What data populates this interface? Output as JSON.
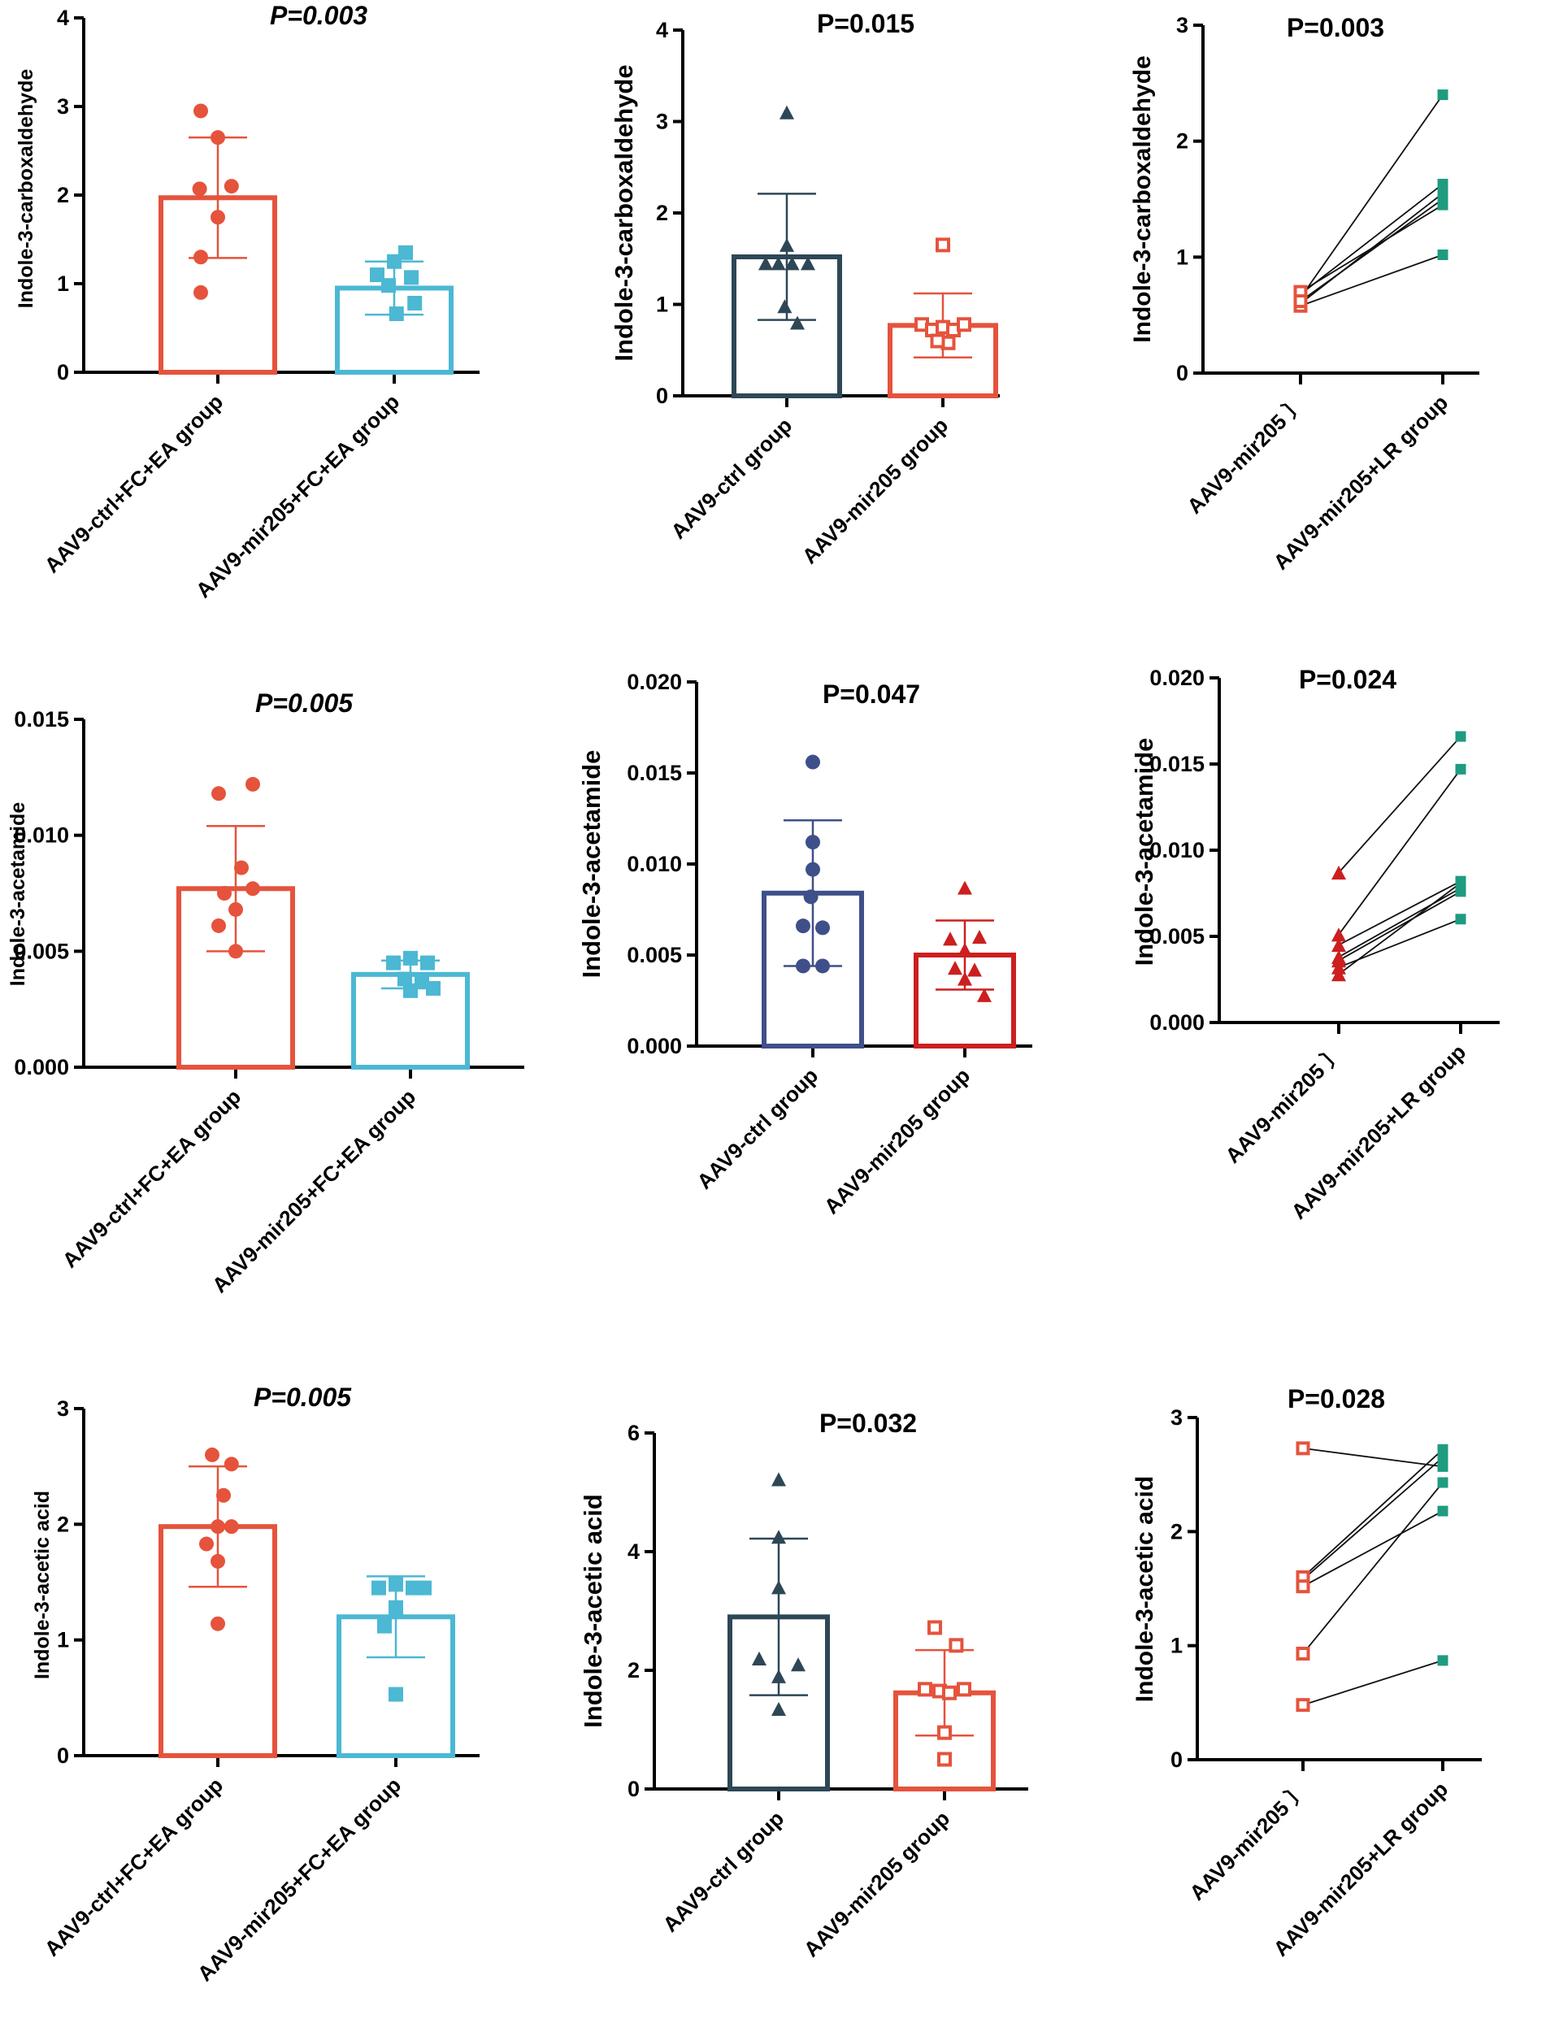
{
  "colors": {
    "red": "#e5533c",
    "cyan": "#4cb8d3",
    "navy": "#2e4756",
    "blue": "#3f4f8a",
    "darkred": "#cc1f1f",
    "teal": "#1f9b80",
    "axis": "#000000"
  },
  "chart_data": [
    {
      "id": "p1",
      "type": "bar",
      "title": "P=0.003",
      "title_style": "italic",
      "ylabel": "Indole-3-carboxaldehyde",
      "ylim": [
        0,
        4
      ],
      "yticks": [
        "0",
        "1",
        "2",
        "3",
        "4"
      ],
      "categories": [
        "AAV9-ctrl+FC+EA group",
        "AAV9-mir205+FC+EA group"
      ],
      "series": [
        {
          "name": "AAV9-ctrl+FC+EA group",
          "mean": 1.97,
          "sd": 0.68,
          "color": "#e5533c",
          "marker": "circle",
          "filled": true,
          "points": [
            [
              -0.15,
              2.95
            ],
            [
              0.0,
              2.65
            ],
            [
              -0.16,
              2.07
            ],
            [
              0.12,
              2.1
            ],
            [
              0.0,
              1.75
            ],
            [
              -0.15,
              1.3
            ],
            [
              -0.15,
              0.9
            ]
          ]
        },
        {
          "name": "AAV9-mir205+FC+EA group",
          "mean": 0.95,
          "sd": 0.3,
          "color": "#4cb8d3",
          "marker": "square",
          "filled": true,
          "points": [
            [
              0.1,
              1.35
            ],
            [
              0.0,
              1.25
            ],
            [
              -0.15,
              1.1
            ],
            [
              0.15,
              1.07
            ],
            [
              -0.05,
              0.98
            ],
            [
              0.18,
              0.78
            ],
            [
              0.02,
              0.66
            ]
          ]
        }
      ]
    },
    {
      "id": "p2",
      "type": "bar",
      "title": "P=0.015",
      "title_style": "bold",
      "ylabel": "Indole-3-carboxaldehyde",
      "ylim": [
        0,
        4
      ],
      "yticks": [
        "0",
        "1",
        "2",
        "3",
        "4"
      ],
      "categories": [
        "AAV9-ctrl group",
        "AAV9-mir205 group"
      ],
      "series": [
        {
          "name": "AAV9-ctrl group",
          "mean": 1.52,
          "sd": 0.69,
          "color": "#2e4756",
          "marker": "triangle",
          "filled": true,
          "points": [
            [
              0.0,
              3.1
            ],
            [
              0.0,
              1.65
            ],
            [
              -0.2,
              1.45
            ],
            [
              -0.08,
              1.45
            ],
            [
              0.05,
              1.45
            ],
            [
              0.2,
              1.45
            ],
            [
              -0.02,
              0.98
            ],
            [
              0.1,
              0.8
            ]
          ]
        },
        {
          "name": "AAV9-mir205 group",
          "mean": 0.77,
          "sd": 0.35,
          "color": "#e5533c",
          "marker": "square",
          "filled": false,
          "points": [
            [
              0.0,
              1.65
            ],
            [
              -0.2,
              0.78
            ],
            [
              -0.1,
              0.72
            ],
            [
              0.0,
              0.75
            ],
            [
              0.1,
              0.72
            ],
            [
              0.2,
              0.78
            ],
            [
              0.05,
              0.58
            ],
            [
              -0.05,
              0.6
            ]
          ]
        }
      ]
    },
    {
      "id": "p3",
      "type": "line",
      "title": "P=0.003",
      "title_style": "bold",
      "ylabel": "Indole-3-carboxaldehyde",
      "ylim": [
        0,
        3
      ],
      "yticks": [
        "0",
        "1",
        "2",
        "3"
      ],
      "categories": [
        "AAV9-mir205 〕",
        "AAV9-mir205+LR group"
      ],
      "before": [
        0.65,
        0.68,
        0.6,
        0.7,
        0.58,
        0.62
      ],
      "after": [
        2.4,
        1.63,
        1.55,
        1.45,
        1.02,
        1.5
      ],
      "before_color": "#e5533c",
      "after_color": "#1f9b80"
    },
    {
      "id": "p4",
      "type": "bar",
      "title": "P=0.005",
      "title_style": "italic",
      "ylabel": "Indole-3-acetamide",
      "ylim": [
        0,
        0.015
      ],
      "yticks": [
        "0.000",
        "0.005",
        "0.010",
        "0.015"
      ],
      "categories": [
        "AAV9-ctrl+FC+EA group",
        "AAV9-mir205+FC+EA group"
      ],
      "series": [
        {
          "name": "AAV9-ctrl+FC+EA group",
          "mean": 0.0077,
          "sd": 0.0027,
          "color": "#e5533c",
          "marker": "circle",
          "filled": true,
          "points": [
            [
              0.15,
              0.0122
            ],
            [
              -0.15,
              0.0118
            ],
            [
              0.05,
              0.0086
            ],
            [
              -0.1,
              0.0075
            ],
            [
              0.15,
              0.0077
            ],
            [
              0.0,
              0.0068
            ],
            [
              -0.15,
              0.0061
            ],
            [
              0.0,
              0.005
            ]
          ]
        },
        {
          "name": "AAV9-mir205+FC+EA group",
          "mean": 0.004,
          "sd": 0.0006,
          "color": "#4cb8d3",
          "marker": "square",
          "filled": true,
          "points": [
            [
              -0.15,
              0.0045
            ],
            [
              0.15,
              0.0045
            ],
            [
              0.0,
              0.0047
            ],
            [
              -0.05,
              0.0038
            ],
            [
              0.1,
              0.0037
            ],
            [
              0.0,
              0.0033
            ],
            [
              0.2,
              0.0034
            ]
          ]
        }
      ]
    },
    {
      "id": "p5",
      "type": "bar",
      "title": "P=0.047",
      "title_style": "bold",
      "ylabel": "Indole-3-acetamide",
      "ylim": [
        0,
        0.02
      ],
      "yticks": [
        "0.000",
        "0.005",
        "0.010",
        "0.015",
        "0.020"
      ],
      "categories": [
        "AAV9-ctrl group",
        "AAV9-mir205 group"
      ],
      "series": [
        {
          "name": "AAV9-ctrl group",
          "mean": 0.0084,
          "sd": 0.004,
          "color": "#3f4f8a",
          "marker": "circle",
          "filled": true,
          "points": [
            [
              0.0,
              0.0156
            ],
            [
              0.0,
              0.0112
            ],
            [
              0.0,
              0.0097
            ],
            [
              -0.02,
              0.0082
            ],
            [
              -0.1,
              0.0066
            ],
            [
              0.1,
              0.0065
            ],
            [
              -0.1,
              0.0044
            ],
            [
              0.1,
              0.0044
            ]
          ]
        },
        {
          "name": "AAV9-mir205 group",
          "mean": 0.005,
          "sd": 0.0019,
          "color": "#cc1f1f",
          "marker": "triangle",
          "filled": true,
          "points": [
            [
              0.0,
              0.0087
            ],
            [
              -0.15,
              0.0059
            ],
            [
              0.15,
              0.006
            ],
            [
              0.0,
              0.0053
            ],
            [
              -0.1,
              0.0043
            ],
            [
              0.1,
              0.0042
            ],
            [
              0.0,
              0.0037
            ],
            [
              0.2,
              0.0028
            ]
          ]
        }
      ]
    },
    {
      "id": "p6",
      "type": "line",
      "title": "P=0.024",
      "title_style": "bold",
      "ylabel": "Indole-3-acetamide",
      "ylim": [
        0,
        0.02
      ],
      "yticks": [
        "0.000",
        "0.005",
        "0.010",
        "0.015",
        "0.020"
      ],
      "categories": [
        "AAV9-mir205 〕",
        "AAV9-mir205+LR group"
      ],
      "before": [
        0.0087,
        0.0051,
        0.0045,
        0.0038,
        0.0036,
        0.0032,
        0.0028
      ],
      "after": [
        0.0166,
        0.0147,
        0.0082,
        0.0078,
        0.0076,
        0.006,
        0.0081
      ],
      "before_color": "#cc1f1f",
      "after_color": "#1f9b80"
    },
    {
      "id": "p7",
      "type": "bar",
      "title": "P=0.005",
      "title_style": "italic",
      "ylabel": "Indole-3-acetic acid",
      "ylim": [
        0,
        3
      ],
      "yticks": [
        "0",
        "1",
        "2",
        "3"
      ],
      "categories": [
        "AAV9-ctrl+FC+EA group",
        "AAV9-mir205+FC+EA group"
      ],
      "series": [
        {
          "name": "AAV9-ctrl+FC+EA group",
          "mean": 1.98,
          "sd": 0.52,
          "color": "#e5533c",
          "marker": "circle",
          "filled": true,
          "points": [
            [
              -0.05,
              2.6
            ],
            [
              0.12,
              2.52
            ],
            [
              0.05,
              2.25
            ],
            [
              0.0,
              1.98
            ],
            [
              0.12,
              1.98
            ],
            [
              -0.1,
              1.83
            ],
            [
              0.0,
              1.68
            ],
            [
              0.0,
              1.14
            ]
          ]
        },
        {
          "name": "AAV9-mir205+FC+EA group",
          "mean": 1.2,
          "sd": 0.35,
          "color": "#4cb8d3",
          "marker": "square",
          "filled": true,
          "points": [
            [
              -0.15,
              1.45
            ],
            [
              0.0,
              1.48
            ],
            [
              0.15,
              1.45
            ],
            [
              0.25,
              1.45
            ],
            [
              0.0,
              1.28
            ],
            [
              -0.1,
              1.12
            ],
            [
              0.0,
              0.53
            ]
          ]
        }
      ]
    },
    {
      "id": "p8",
      "type": "bar",
      "title": "P=0.032",
      "title_style": "bold",
      "ylabel": "Indole-3-acetic acid",
      "ylim": [
        0,
        6
      ],
      "yticks": [
        "0",
        "2",
        "4",
        "6"
      ],
      "categories": [
        "AAV9-ctrl group",
        "AAV9-mir205 group"
      ],
      "series": [
        {
          "name": "AAV9-ctrl group",
          "mean": 2.9,
          "sd": 1.32,
          "color": "#2e4756",
          "marker": "triangle",
          "filled": true,
          "points": [
            [
              0.0,
              5.22
            ],
            [
              0.0,
              4.25
            ],
            [
              0.0,
              3.4
            ],
            [
              -0.2,
              2.2
            ],
            [
              0.2,
              2.1
            ],
            [
              0.0,
              1.9
            ],
            [
              0.0,
              1.35
            ]
          ]
        },
        {
          "name": "AAV9-mir205 group",
          "mean": 1.62,
          "sd": 0.72,
          "color": "#e5533c",
          "marker": "square",
          "filled": false,
          "points": [
            [
              -0.1,
              2.72
            ],
            [
              0.12,
              2.42
            ],
            [
              -0.2,
              1.68
            ],
            [
              -0.05,
              1.65
            ],
            [
              0.05,
              1.62
            ],
            [
              0.2,
              1.68
            ],
            [
              0.0,
              0.95
            ],
            [
              0.0,
              0.5
            ]
          ]
        }
      ]
    },
    {
      "id": "p9",
      "type": "line",
      "title": "P=0.028",
      "title_style": "bold",
      "ylabel": "Indole-3-acetic acid",
      "ylim": [
        0,
        3
      ],
      "yticks": [
        "0",
        "1",
        "2",
        "3"
      ],
      "categories": [
        "AAV9-mir205 〕",
        "AAV9-mir205+LR group"
      ],
      "before": [
        2.73,
        1.58,
        1.6,
        1.52,
        0.93,
        0.48
      ],
      "after": [
        2.57,
        2.65,
        2.72,
        2.18,
        2.43,
        0.87
      ],
      "before_color": "#e5533c",
      "after_color": "#1f9b80"
    }
  ]
}
